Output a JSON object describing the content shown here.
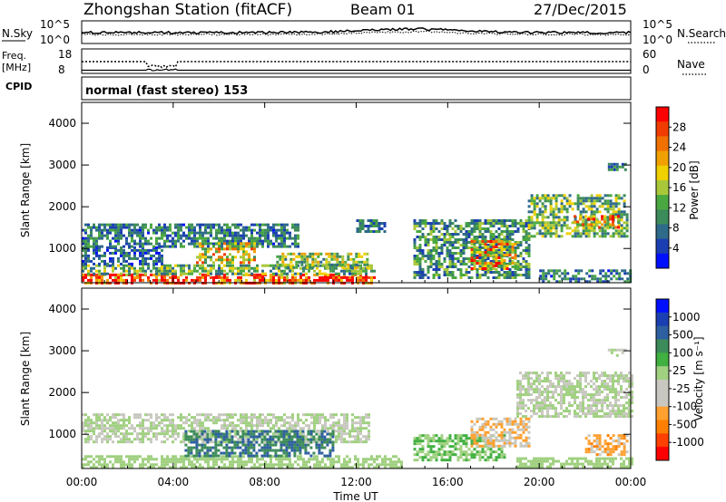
{
  "header": {
    "station": "Zhongshan Station (fitACF)",
    "beam": "Beam 01",
    "date": "27/Dec/2015"
  },
  "noise_panel": {
    "left_label": "N.Sky",
    "left_ticks": [
      "10^5",
      "10^0"
    ],
    "right_label": "N.Search",
    "right_ticks": [
      "10^5",
      "10^0"
    ]
  },
  "freq_panel": {
    "left_label_1": "Freq.",
    "left_label_2": "[MHz]",
    "left_ticks": [
      "18",
      "8"
    ],
    "right_label": "Nave",
    "right_ticks": [
      "60",
      "0"
    ]
  },
  "cpid": {
    "label": "CPID",
    "value": "normal (fast stereo) 153"
  },
  "colors": {
    "scale": [
      "#0010ff",
      "#1b3fb2",
      "#2e6a8a",
      "#3c8b5a",
      "#4aa840",
      "#a8c83a",
      "#f0d000",
      "#f0a000",
      "#f07000",
      "#f03c00",
      "#ff0000"
    ],
    "velocity_scale": [
      "#ff0000",
      "#ff4000",
      "#ff8000",
      "#ffa030",
      "#c8c8c0",
      "#c8c8c0",
      "#a0d080",
      "#40b040",
      "#3c8b5a",
      "#2e5fa0",
      "#1b3fb2",
      "#0010ff"
    ],
    "gray": "#c8c8c0"
  },
  "chart_data": [
    {
      "type": "heatmap",
      "title": "",
      "xlabel": "Time UT",
      "ylabel": "Slant Range [km]",
      "x_ticks": [
        "00:00",
        "04:00",
        "08:00",
        "12:00",
        "16:00",
        "20:00",
        "00:00"
      ],
      "y_ticks": [
        "1000",
        "2000",
        "3000",
        "4000"
      ],
      "xlim_hours": [
        0,
        24
      ],
      "ylim_km": [
        180,
        4500
      ],
      "colorbar_label": "Power [dB]",
      "colorbar_ticks": [
        "4",
        "8",
        "12",
        "16",
        "20",
        "24",
        "28"
      ],
      "colorbar_range": [
        0,
        30
      ],
      "regions": [
        {
          "t": [
            0,
            12.8
          ],
          "r": [
            200,
            400
          ],
          "v": 26
        },
        {
          "t": [
            0,
            12.8
          ],
          "r": [
            400,
            620
          ],
          "v": 12
        },
        {
          "t": [
            0,
            3.5
          ],
          "r": [
            620,
            1050
          ],
          "v": 6
        },
        {
          "t": [
            0,
            9.5
          ],
          "r": [
            1050,
            1600
          ],
          "v": 8
        },
        {
          "t": [
            5.0,
            7.5
          ],
          "r": [
            650,
            1150
          ],
          "v": 18
        },
        {
          "t": [
            8.5,
            12.5
          ],
          "r": [
            550,
            900
          ],
          "v": 14
        },
        {
          "t": [
            12.0,
            13.2
          ],
          "r": [
            1400,
            1700
          ],
          "v": 8
        },
        {
          "t": [
            14.5,
            19.5
          ],
          "r": [
            300,
            1700
          ],
          "v": 10
        },
        {
          "t": [
            17.0,
            19.0
          ],
          "r": [
            500,
            1200
          ],
          "v": 20
        },
        {
          "t": [
            19.5,
            23.8
          ],
          "r": [
            1300,
            2300
          ],
          "v": 12
        },
        {
          "t": [
            21.5,
            23.5
          ],
          "r": [
            1500,
            1800
          ],
          "v": 22
        },
        {
          "t": [
            20.0,
            24.0
          ],
          "r": [
            200,
            500
          ],
          "v": 8
        },
        {
          "t": [
            23.0,
            23.8
          ],
          "r": [
            2900,
            3050
          ],
          "v": 8
        }
      ]
    },
    {
      "type": "heatmap",
      "title": "",
      "xlabel": "Time UT",
      "ylabel": "Slant Range [km]",
      "x_ticks": [
        "00:00",
        "04:00",
        "08:00",
        "12:00",
        "16:00",
        "20:00",
        "00:00"
      ],
      "y_ticks": [
        "1000",
        "2000",
        "3000",
        "4000"
      ],
      "xlim_hours": [
        0,
        24
      ],
      "ylim_km": [
        180,
        4500
      ],
      "colorbar_label": "Velocity [m s⁻¹]",
      "colorbar_ticks": [
        "1000",
        "500",
        "100",
        "25",
        "-25",
        "-100",
        "-500",
        "-1000"
      ],
      "colorbar_range": [
        -1200,
        1200
      ],
      "regions": [
        {
          "t": [
            0,
            14.0
          ],
          "r": [
            200,
            500
          ],
          "v": 150
        },
        {
          "t": [
            0,
            12.5
          ],
          "r": [
            800,
            1500
          ],
          "v": 0
        },
        {
          "t": [
            4.5,
            11.0
          ],
          "r": [
            500,
            1100
          ],
          "v": 600
        },
        {
          "t": [
            14.5,
            18.5
          ],
          "r": [
            400,
            1000
          ],
          "v": 200
        },
        {
          "t": [
            17.0,
            19.5
          ],
          "r": [
            700,
            1400
          ],
          "v": -400
        },
        {
          "t": [
            19.0,
            24.0
          ],
          "r": [
            1400,
            2500
          ],
          "v": 0
        },
        {
          "t": [
            22.0,
            23.8
          ],
          "r": [
            500,
            1000
          ],
          "v": -500
        },
        {
          "t": [
            19.0,
            24.0
          ],
          "r": [
            200,
            450
          ],
          "v": 100
        },
        {
          "t": [
            23.0,
            23.8
          ],
          "r": [
            2900,
            3050
          ],
          "v": 0
        }
      ]
    }
  ]
}
